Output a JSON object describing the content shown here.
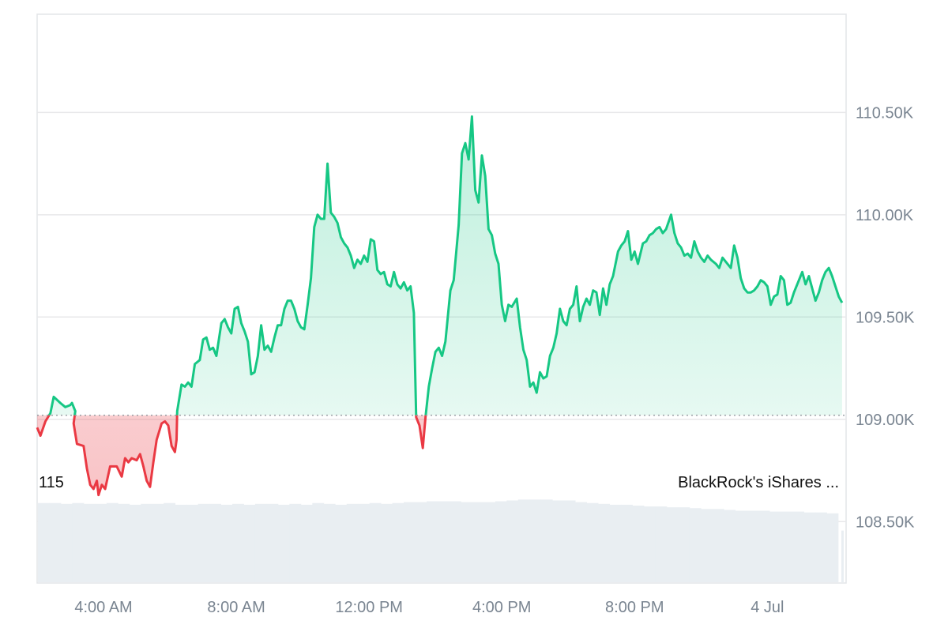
{
  "chart_data": {
    "type": "area",
    "baseline": 109020,
    "ylim": [
      108200,
      110980
    ],
    "yticks": [
      {
        "value": 110500,
        "label": "110.50K"
      },
      {
        "value": 110000,
        "label": "110.00K"
      },
      {
        "value": 109500,
        "label": "109.50K"
      },
      {
        "value": 109000,
        "label": "109.00K"
      },
      {
        "value": 108500,
        "label": "108.50K"
      }
    ],
    "x_unit": "hours",
    "xlim": [
      2.0,
      26.3
    ],
    "xticks": [
      {
        "value": 4,
        "label": "4:00 AM"
      },
      {
        "value": 8,
        "label": "8:00 AM"
      },
      {
        "value": 12,
        "label": "12:00 PM"
      },
      {
        "value": 16,
        "label": "4:00 PM"
      },
      {
        "value": 20,
        "label": "8:00 PM"
      },
      {
        "value": 24,
        "label": "4 Jul"
      }
    ],
    "series": [
      {
        "points": [
          [
            2.0,
            108960
          ],
          [
            2.1,
            108920
          ],
          [
            2.25,
            108990
          ],
          [
            2.4,
            109030
          ],
          [
            2.5,
            109110
          ],
          [
            2.7,
            109080
          ],
          [
            2.85,
            109060
          ],
          [
            3.0,
            109070
          ],
          [
            3.05,
            109080
          ],
          [
            3.15,
            109040
          ],
          [
            3.1,
            108980
          ],
          [
            3.2,
            108880
          ],
          [
            3.4,
            108870
          ],
          [
            3.5,
            108760
          ],
          [
            3.6,
            108680
          ],
          [
            3.7,
            108660
          ],
          [
            3.8,
            108700
          ],
          [
            3.85,
            108630
          ],
          [
            3.95,
            108680
          ],
          [
            4.05,
            108660
          ],
          [
            4.2,
            108770
          ],
          [
            4.4,
            108770
          ],
          [
            4.55,
            108720
          ],
          [
            4.65,
            108810
          ],
          [
            4.75,
            108790
          ],
          [
            4.85,
            108810
          ],
          [
            5.0,
            108800
          ],
          [
            5.1,
            108830
          ],
          [
            5.2,
            108770
          ],
          [
            5.3,
            108700
          ],
          [
            5.4,
            108670
          ],
          [
            5.5,
            108790
          ],
          [
            5.6,
            108900
          ],
          [
            5.75,
            108980
          ],
          [
            5.85,
            108990
          ],
          [
            5.95,
            108970
          ],
          [
            6.05,
            108870
          ],
          [
            6.15,
            108840
          ],
          [
            6.2,
            108900
          ],
          [
            6.22,
            109040
          ],
          [
            6.35,
            109170
          ],
          [
            6.45,
            109160
          ],
          [
            6.55,
            109180
          ],
          [
            6.65,
            109160
          ],
          [
            6.75,
            109270
          ],
          [
            6.9,
            109290
          ],
          [
            7.0,
            109390
          ],
          [
            7.1,
            109400
          ],
          [
            7.2,
            109340
          ],
          [
            7.3,
            109350
          ],
          [
            7.4,
            109310
          ],
          [
            7.55,
            109470
          ],
          [
            7.65,
            109490
          ],
          [
            7.75,
            109450
          ],
          [
            7.85,
            109420
          ],
          [
            7.95,
            109540
          ],
          [
            8.05,
            109550
          ],
          [
            8.15,
            109470
          ],
          [
            8.25,
            109430
          ],
          [
            8.35,
            109380
          ],
          [
            8.45,
            109220
          ],
          [
            8.55,
            109230
          ],
          [
            8.65,
            109310
          ],
          [
            8.75,
            109460
          ],
          [
            8.85,
            109340
          ],
          [
            8.95,
            109360
          ],
          [
            9.05,
            109330
          ],
          [
            9.15,
            109400
          ],
          [
            9.25,
            109460
          ],
          [
            9.35,
            109460
          ],
          [
            9.45,
            109540
          ],
          [
            9.55,
            109580
          ],
          [
            9.65,
            109580
          ],
          [
            9.75,
            109540
          ],
          [
            9.85,
            109480
          ],
          [
            9.95,
            109450
          ],
          [
            10.05,
            109440
          ],
          [
            10.15,
            109560
          ],
          [
            10.25,
            109690
          ],
          [
            10.35,
            109940
          ],
          [
            10.45,
            110000
          ],
          [
            10.55,
            109980
          ],
          [
            10.65,
            109980
          ],
          [
            10.75,
            110250
          ],
          [
            10.85,
            110010
          ],
          [
            10.95,
            109990
          ],
          [
            11.05,
            109960
          ],
          [
            11.15,
            109890
          ],
          [
            11.25,
            109860
          ],
          [
            11.35,
            109840
          ],
          [
            11.45,
            109800
          ],
          [
            11.55,
            109740
          ],
          [
            11.65,
            109780
          ],
          [
            11.75,
            109760
          ],
          [
            11.85,
            109800
          ],
          [
            11.95,
            109770
          ],
          [
            12.05,
            109880
          ],
          [
            12.15,
            109870
          ],
          [
            12.25,
            109730
          ],
          [
            12.35,
            109710
          ],
          [
            12.45,
            109720
          ],
          [
            12.55,
            109660
          ],
          [
            12.65,
            109650
          ],
          [
            12.75,
            109720
          ],
          [
            12.85,
            109660
          ],
          [
            12.95,
            109640
          ],
          [
            13.05,
            109670
          ],
          [
            13.15,
            109630
          ],
          [
            13.25,
            109650
          ],
          [
            13.35,
            109520
          ],
          [
            13.42,
            109010
          ],
          [
            13.52,
            108970
          ],
          [
            13.62,
            108860
          ],
          [
            13.7,
            109010
          ],
          [
            13.8,
            109160
          ],
          [
            13.9,
            109250
          ],
          [
            14.0,
            109330
          ],
          [
            14.1,
            109350
          ],
          [
            14.2,
            109310
          ],
          [
            14.3,
            109380
          ],
          [
            14.45,
            109630
          ],
          [
            14.55,
            109680
          ],
          [
            14.7,
            109950
          ],
          [
            14.8,
            110300
          ],
          [
            14.9,
            110350
          ],
          [
            15.0,
            110270
          ],
          [
            15.1,
            110480
          ],
          [
            15.2,
            110120
          ],
          [
            15.3,
            110060
          ],
          [
            15.4,
            110290
          ],
          [
            15.5,
            110190
          ],
          [
            15.6,
            109930
          ],
          [
            15.7,
            109900
          ],
          [
            15.8,
            109810
          ],
          [
            15.9,
            109760
          ],
          [
            16.0,
            109560
          ],
          [
            16.1,
            109480
          ],
          [
            16.2,
            109560
          ],
          [
            16.3,
            109550
          ],
          [
            16.45,
            109590
          ],
          [
            16.55,
            109450
          ],
          [
            16.65,
            109340
          ],
          [
            16.75,
            109290
          ],
          [
            16.85,
            109160
          ],
          [
            16.95,
            109180
          ],
          [
            17.05,
            109130
          ],
          [
            17.15,
            109230
          ],
          [
            17.25,
            109200
          ],
          [
            17.35,
            109210
          ],
          [
            17.45,
            109310
          ],
          [
            17.55,
            109350
          ],
          [
            17.65,
            109420
          ],
          [
            17.75,
            109540
          ],
          [
            17.85,
            109480
          ],
          [
            17.95,
            109460
          ],
          [
            18.05,
            109540
          ],
          [
            18.15,
            109560
          ],
          [
            18.25,
            109650
          ],
          [
            18.35,
            109480
          ],
          [
            18.45,
            109550
          ],
          [
            18.55,
            109590
          ],
          [
            18.65,
            109560
          ],
          [
            18.75,
            109630
          ],
          [
            18.85,
            109620
          ],
          [
            18.95,
            109510
          ],
          [
            19.05,
            109640
          ],
          [
            19.15,
            109560
          ],
          [
            19.25,
            109660
          ],
          [
            19.35,
            109700
          ],
          [
            19.5,
            109820
          ],
          [
            19.6,
            109850
          ],
          [
            19.7,
            109870
          ],
          [
            19.8,
            109920
          ],
          [
            19.9,
            109780
          ],
          [
            20.0,
            109820
          ],
          [
            20.1,
            109760
          ],
          [
            20.25,
            109860
          ],
          [
            20.35,
            109870
          ],
          [
            20.45,
            109900
          ],
          [
            20.55,
            109910
          ],
          [
            20.65,
            109930
          ],
          [
            20.75,
            109940
          ],
          [
            20.85,
            109910
          ],
          [
            20.95,
            109930
          ],
          [
            21.1,
            110000
          ],
          [
            21.2,
            109910
          ],
          [
            21.3,
            109860
          ],
          [
            21.4,
            109840
          ],
          [
            21.5,
            109800
          ],
          [
            21.6,
            109810
          ],
          [
            21.7,
            109790
          ],
          [
            21.8,
            109870
          ],
          [
            21.9,
            109820
          ],
          [
            22.0,
            109790
          ],
          [
            22.1,
            109770
          ],
          [
            22.2,
            109800
          ],
          [
            22.3,
            109780
          ],
          [
            22.45,
            109760
          ],
          [
            22.55,
            109740
          ],
          [
            22.65,
            109790
          ],
          [
            22.75,
            109770
          ],
          [
            22.9,
            109740
          ],
          [
            23.0,
            109850
          ],
          [
            23.1,
            109790
          ],
          [
            23.2,
            109690
          ],
          [
            23.3,
            109640
          ],
          [
            23.4,
            109620
          ],
          [
            23.5,
            109620
          ],
          [
            23.6,
            109630
          ],
          [
            23.7,
            109650
          ],
          [
            23.8,
            109680
          ],
          [
            23.9,
            109670
          ],
          [
            24.0,
            109650
          ],
          [
            24.1,
            109560
          ],
          [
            24.2,
            109600
          ],
          [
            24.3,
            109610
          ],
          [
            24.4,
            109700
          ],
          [
            24.5,
            109680
          ],
          [
            24.6,
            109560
          ],
          [
            24.7,
            109570
          ],
          [
            24.8,
            109620
          ],
          [
            24.95,
            109680
          ],
          [
            25.05,
            109720
          ],
          [
            25.15,
            109660
          ],
          [
            25.25,
            109700
          ],
          [
            25.35,
            109640
          ],
          [
            25.45,
            109580
          ],
          [
            25.55,
            109620
          ],
          [
            25.65,
            109680
          ],
          [
            25.75,
            109720
          ],
          [
            25.85,
            109740
          ],
          [
            25.95,
            109700
          ],
          [
            26.05,
            109650
          ],
          [
            26.15,
            109600
          ],
          [
            26.25,
            109570
          ]
        ]
      }
    ],
    "volume": {
      "values": [
        0.92,
        0.92,
        0.91,
        0.92,
        0.91,
        0.91,
        0.92,
        0.91,
        0.9,
        0.91,
        0.91,
        0.92,
        0.9,
        0.9,
        0.91,
        0.91,
        0.9,
        0.91,
        0.9,
        0.91,
        0.91,
        0.9,
        0.91,
        0.9,
        0.92,
        0.91,
        0.9,
        0.91,
        0.91,
        0.92,
        0.91,
        0.92,
        0.93,
        0.93,
        0.94,
        0.94,
        0.94,
        0.93,
        0.93,
        0.93,
        0.94,
        0.95,
        0.96,
        0.96,
        0.96,
        0.95,
        0.95,
        0.93,
        0.92,
        0.91,
        0.9,
        0.9,
        0.89,
        0.88,
        0.88,
        0.87,
        0.87,
        0.86,
        0.85,
        0.85,
        0.84,
        0.83,
        0.83,
        0.83,
        0.82,
        0.82,
        0.82,
        0.81,
        0.81,
        0.8
      ],
      "gap_bars": [
        0.6
      ]
    },
    "grid": true,
    "legend": "none",
    "colors": {
      "up_line": "#16c784",
      "down_line": "#ea3943",
      "grid": "#e8e8ea",
      "volume": "#e9eef2",
      "baseline": "#9aa0a6",
      "axis_text": "#7a8591"
    },
    "annotations": [
      {
        "text": "115",
        "position": "bottom-left"
      },
      {
        "text": "BlackRock's iShares ...",
        "position": "bottom-right"
      }
    ]
  }
}
